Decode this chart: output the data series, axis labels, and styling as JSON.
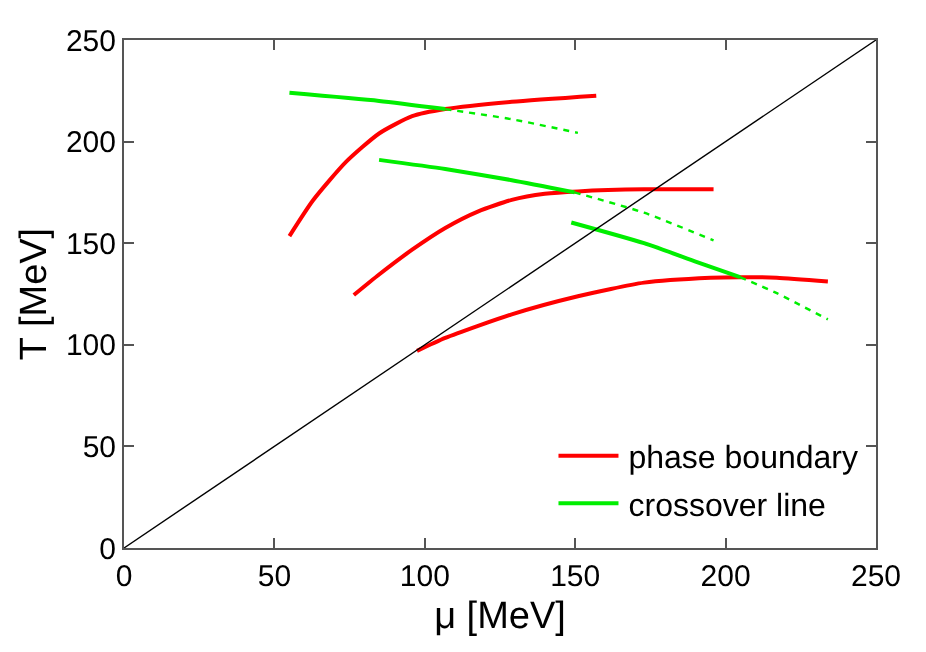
{
  "chart_data": {
    "type": "line",
    "xlabel": "μ [MeV]",
    "ylabel": "T [MeV]",
    "xlim": [
      0,
      250
    ],
    "ylim": [
      0,
      250
    ],
    "xticks": [
      0,
      50,
      100,
      150,
      200,
      250
    ],
    "yticks": [
      0,
      50,
      100,
      150,
      200,
      250
    ],
    "grid": false,
    "legend": "bottom right",
    "marker": "none",
    "series": [
      {
        "name": "phase boundary",
        "color": "#ff0000",
        "line_style": "solid",
        "x": [
          55,
          62.8,
          73.8,
          84.8,
          95.8,
          106.8,
          128.9,
          157
        ],
        "values": [
          153.5,
          171,
          190,
          204,
          212.5,
          216,
          219.6,
          222.6
        ]
      },
      {
        "name": "crossover line",
        "color": "#00ee00",
        "line_style": "solid",
        "x": [
          55,
          84.8,
          106.8
        ],
        "values": [
          224,
          220,
          216
        ]
      },
      {
        "color": "#00ee00",
        "line_style": "dotted",
        "x": [
          106.8,
          128.9,
          150.9
        ],
        "values": [
          216,
          211,
          204.3
        ]
      },
      {
        "color": "#ff0000",
        "line_style": "solid",
        "x": [
          76.4,
          84.8,
          95.8,
          106.8,
          117.8,
          128.9,
          139.9,
          150.9,
          172.9,
          196
        ],
        "values": [
          124.5,
          134.6,
          146.8,
          157.5,
          165.7,
          171.3,
          174.3,
          175.5,
          176.5,
          176.5
        ]
      },
      {
        "color": "#00ee00",
        "line_style": "solid",
        "x": [
          84.8,
          106.8,
          128.9,
          149.8
        ],
        "values": [
          191,
          186.5,
          181,
          175
        ]
      },
      {
        "color": "#00ee00",
        "line_style": "dotted",
        "x": [
          149.8,
          172.9,
          196
        ],
        "values": [
          175,
          165,
          151.4
        ]
      },
      {
        "color": "#ff0000",
        "line_style": "solid",
        "x": [
          97.4,
          106.8,
          128.9,
          150.9,
          172.9,
          195,
          204.8,
          217,
          234
        ],
        "values": [
          97,
          103.4,
          115,
          123.9,
          130.6,
          133,
          133.3,
          133,
          131.2
        ]
      },
      {
        "color": "#00ee00",
        "line_style": "solid",
        "x": [
          148.7,
          172.9,
          190.5,
          204.8
        ],
        "values": [
          160.2,
          150,
          140.7,
          133.3
        ]
      },
      {
        "color": "#00ee00",
        "line_style": "dotted",
        "x": [
          204.8,
          217,
          234
        ],
        "values": [
          133.3,
          125.4,
          112.5
        ]
      },
      {
        "color": "#000000",
        "line_style": "solid",
        "x": [
          0,
          250
        ],
        "values": [
          0,
          250
        ]
      }
    ]
  }
}
